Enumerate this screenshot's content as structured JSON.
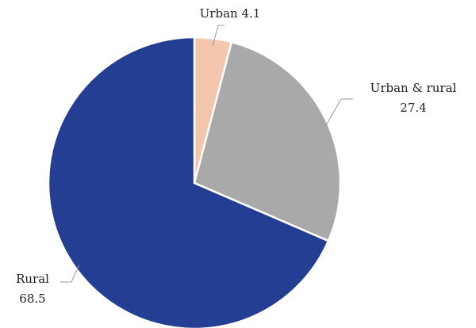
{
  "chart_data": {
    "type": "pie",
    "categories": [
      "Urban",
      "Urban & rural",
      "Rural"
    ],
    "values": [
      4.1,
      27.4,
      68.5
    ],
    "colors": [
      "#f4c6ad",
      "#a9a9a9",
      "#233e92"
    ]
  }
}
